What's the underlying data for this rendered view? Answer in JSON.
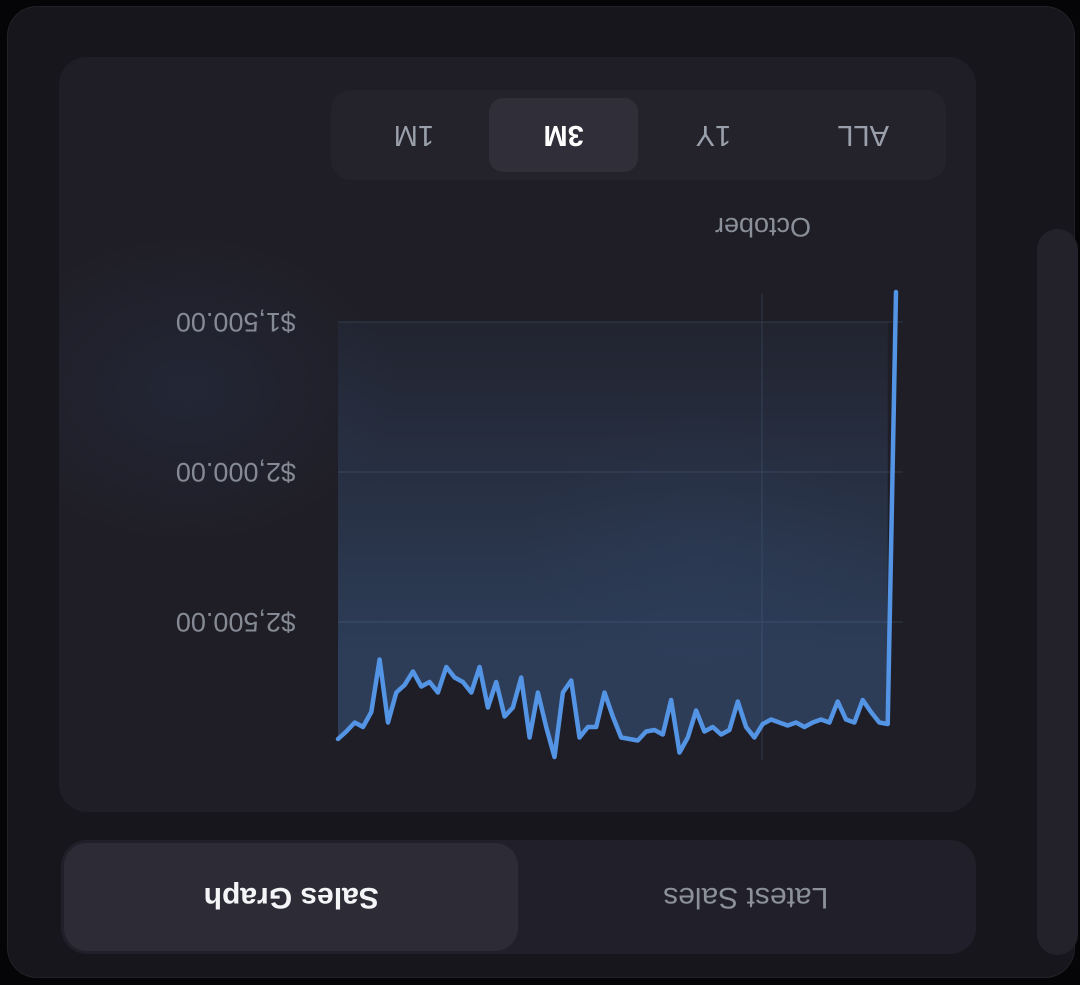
{
  "colors": {
    "page_bg": "#050507",
    "panel_bg": "#17161c",
    "card_bg": "#1f1e26",
    "segment_track_bg": "#24232c",
    "segment_active_bg": "#302f39",
    "tab_track_bg": "#21202a",
    "tab_active_bg": "#2d2c36",
    "accent_line": "#5494e4",
    "grid_line": "#2e3440",
    "muted_text": "#8b909b",
    "active_text": "#f4f5f7",
    "axis_text": "#858a95"
  },
  "view_tabs": {
    "items": [
      {
        "label": "Latest Sales",
        "active": false
      },
      {
        "label": "Sales Graph",
        "active": true
      }
    ]
  },
  "sales_graph": {
    "range_selector": {
      "options": [
        {
          "label": "ALL",
          "selected": false
        },
        {
          "label": "1Y",
          "selected": false
        },
        {
          "label": "3M",
          "selected": true
        },
        {
          "label": "1M",
          "selected": false
        }
      ],
      "selected": "3M"
    }
  },
  "chart_data": {
    "type": "area",
    "title": "Sales Graph",
    "unit": "USD",
    "grid": true,
    "axis_side": "right",
    "legend": "none",
    "ylim": [
      1400,
      3000
    ],
    "y_ticks": [
      {
        "label": "$2,500.00",
        "value": 2500
      },
      {
        "label": "$2,000.00",
        "value": 2000
      },
      {
        "label": "$1,500.00",
        "value": 1500
      }
    ],
    "x_ticks": [
      {
        "label": "October",
        "frac": 0.25
      }
    ],
    "series_name": "Sales",
    "values": [
      1400,
      2840,
      2835,
      2800,
      2760,
      2835,
      2825,
      2765,
      2835,
      2825,
      2835,
      2850,
      2835,
      2845,
      2835,
      2825,
      2840,
      2885,
      2850,
      2765,
      2860,
      2875,
      2850,
      2865,
      2795,
      2885,
      2935,
      2760,
      2875,
      2860,
      2865,
      2895,
      2890,
      2885,
      2815,
      2735,
      2850,
      2850,
      2885,
      2695,
      2735,
      2950,
      2850,
      2735,
      2885,
      2685,
      2785,
      2815,
      2700,
      2785,
      2650,
      2735,
      2700,
      2685,
      2650,
      2735,
      2700,
      2715,
      2665,
      2710,
      2735,
      2835,
      2625,
      2800,
      2850,
      2835,
      2865,
      2890
    ]
  }
}
